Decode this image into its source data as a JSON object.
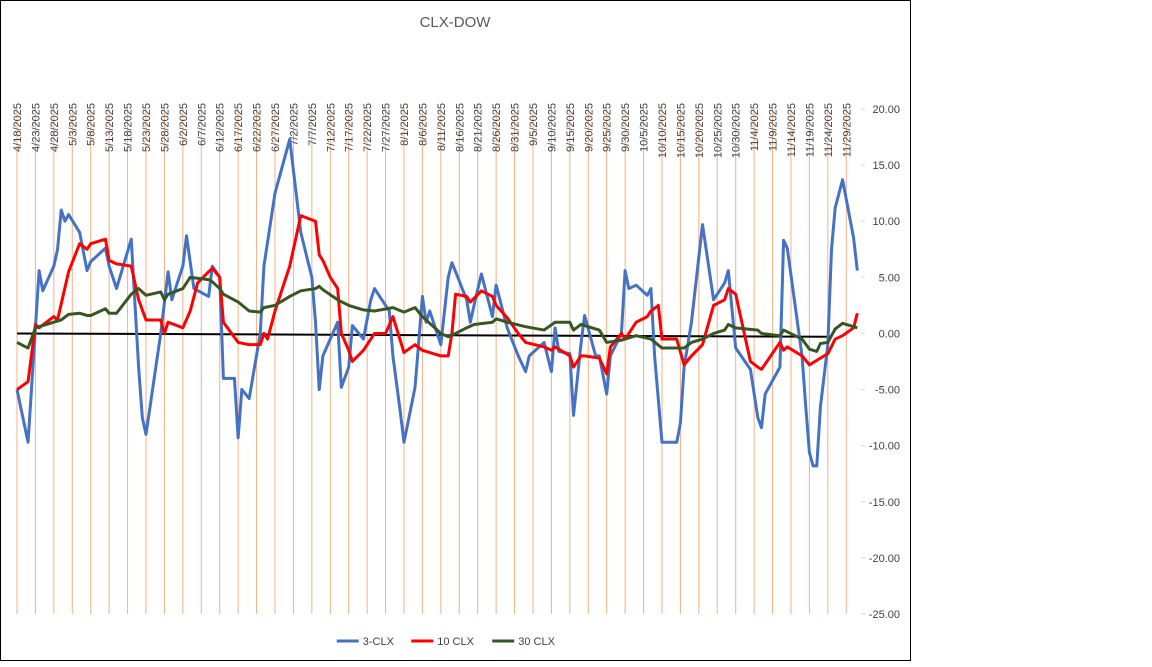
{
  "chart_data": {
    "type": "line",
    "title": "CLX-DOW",
    "xlim": [
      "4/18/2025",
      "12/3/2025"
    ],
    "xticks": [
      "4/18/2025",
      "4/23/2025",
      "4/28/2025",
      "5/3/2025",
      "5/8/2025",
      "5/13/2025",
      "5/18/2025",
      "5/23/2025",
      "5/28/2025",
      "6/2/2025",
      "6/7/2025",
      "6/12/2025",
      "6/17/2025",
      "6/22/2025",
      "6/27/2025",
      "7/2/2025",
      "7/7/2025",
      "7/12/2025",
      "7/17/2025",
      "7/22/2025",
      "7/27/2025",
      "8/1/2025",
      "8/6/2025",
      "8/11/2025",
      "8/16/2025",
      "8/21/2025",
      "8/26/2025",
      "8/31/2025",
      "9/5/2025",
      "9/10/2025",
      "9/15/2025",
      "9/20/2025",
      "9/25/2025",
      "9/30/2025",
      "10/5/2025",
      "10/10/2025",
      "10/15/2025",
      "10/20/2025",
      "10/25/2025",
      "10/30/2025",
      "11/4/2025",
      "11/9/2025",
      "11/14/2025",
      "11/19/2025",
      "11/24/2025",
      "11/29/2025"
    ],
    "ylim": [
      -25,
      20
    ],
    "yticks": [
      {
        "value": 20,
        "label": "20.00"
      },
      {
        "value": 15,
        "label": "15.00"
      },
      {
        "value": 10,
        "label": "10.00"
      },
      {
        "value": 5,
        "label": "5.00"
      },
      {
        "value": 0,
        "label": "0.00"
      },
      {
        "value": -5,
        "label": "-5.00"
      },
      {
        "value": -10,
        "label": "-10.00"
      },
      {
        "value": -15,
        "label": "-15.00"
      },
      {
        "value": -20,
        "label": "-20.00"
      },
      {
        "value": -25,
        "label": "-25.00"
      }
    ],
    "y_axis_side": "right",
    "x_grid": true,
    "grid_color": "#f4b183",
    "legend": "bottom",
    "reference_line": {
      "color": "#000000",
      "x": [
        "4/18/2025",
        "11/24/2025"
      ],
      "values": [
        0,
        -0.3
      ]
    },
    "series": [
      {
        "name": "3-CLX",
        "color": "#4472c4",
        "x": [
          "4/18/2025",
          "4/21/2025",
          "4/24/2025",
          "4/25/2025",
          "4/28/2025",
          "4/29/2025",
          "4/30/2025",
          "5/1/2025",
          "5/2/2025",
          "5/5/2025",
          "5/7/2025",
          "5/8/2025",
          "5/12/2025",
          "5/13/2025",
          "5/15/2025",
          "5/19/2025",
          "5/21/2025",
          "5/22/2025",
          "5/23/2025",
          "5/27/2025",
          "5/29/2025",
          "5/30/2025",
          "6/2/2025",
          "6/3/2025",
          "6/5/2025",
          "6/9/2025",
          "6/10/2025",
          "6/12/2025",
          "6/13/2025",
          "6/16/2025",
          "6/17/2025",
          "6/18/2025",
          "6/20/2025",
          "6/23/2025",
          "6/24/2025",
          "6/27/2025",
          "7/1/2025",
          "7/4/2025",
          "7/7/2025",
          "7/8/2025",
          "7/9/2025",
          "7/10/2025",
          "7/14/2025",
          "7/15/2025",
          "7/17/2025",
          "7/18/2025",
          "7/21/2025",
          "7/23/2025",
          "7/24/2025",
          "7/28/2025",
          "7/29/2025",
          "7/31/2025",
          "8/1/2025",
          "8/4/2025",
          "8/6/2025",
          "8/7/2025",
          "8/8/2025",
          "8/11/2025",
          "8/13/2025",
          "8/14/2025",
          "8/15/2025",
          "8/18/2025",
          "8/19/2025",
          "8/20/2025",
          "8/22/2025",
          "8/25/2025",
          "8/26/2025",
          "8/29/2025",
          "9/1/2025",
          "9/3/2025",
          "9/4/2025",
          "9/8/2025",
          "9/10/2025",
          "9/11/2025",
          "9/12/2025",
          "9/15/2025",
          "9/16/2025",
          "9/18/2025",
          "9/19/2025",
          "9/22/2025",
          "9/23/2025",
          "9/25/2025",
          "9/26/2025",
          "9/29/2025",
          "9/30/2025",
          "10/1/2025",
          "10/3/2025",
          "10/6/2025",
          "10/7/2025",
          "10/8/2025",
          "10/10/2025",
          "10/14/2025",
          "10/15/2025",
          "10/16/2025",
          "10/18/2025",
          "10/21/2025",
          "10/24/2025",
          "10/27/2025",
          "10/28/2025",
          "10/30/2025",
          "11/3/2025",
          "11/5/2025",
          "11/6/2025",
          "11/7/2025",
          "11/11/2025",
          "11/12/2025",
          "11/13/2025",
          "11/17/2025",
          "11/18/2025",
          "11/19/2025",
          "11/20/2025",
          "11/21/2025",
          "11/22/2025",
          "11/24/2025",
          "11/25/2025",
          "11/26/2025",
          "11/28/2025",
          "12/1/2025",
          "12/2/2025"
        ],
        "values": [
          -5,
          -9.7,
          5.6,
          3.8,
          6,
          7.5,
          11,
          10,
          10.6,
          9,
          5.6,
          6.4,
          7.6,
          6,
          4,
          8.4,
          -3,
          -7.5,
          -9,
          0,
          5.5,
          3,
          6,
          8.7,
          4,
          3.3,
          6,
          5,
          -4,
          -4,
          -9.3,
          -5,
          -5.8,
          0,
          6,
          12.5,
          17.3,
          9,
          5,
          1,
          -5,
          -2,
          1,
          -4.8,
          -3,
          0.7,
          -0.5,
          3,
          4,
          2,
          -2,
          -7,
          -9.7,
          -4.8,
          3.3,
          1,
          2,
          -1,
          5,
          6.3,
          5.5,
          3,
          1,
          2.5,
          5.3,
          1.5,
          4.3,
          0.5,
          -2,
          -3.4,
          -2,
          -0.8,
          -3.4,
          0.5,
          -1.6,
          -1.8,
          -7.3,
          -1,
          1.6,
          -2,
          -2,
          -5.4,
          -2,
          0,
          5.6,
          4,
          4.3,
          3.4,
          4,
          -2,
          -9.7,
          -9.7,
          -8,
          -3,
          1,
          9.7,
          3,
          4.5,
          5.6,
          -1.3,
          -3.2,
          -7.5,
          -8.4,
          -5.4,
          -3,
          8.3,
          7.6,
          -2,
          -6.5,
          -10.6,
          -11.8,
          -11.8,
          -6.5,
          -1,
          7.5,
          11.2,
          13.7,
          8.5,
          5.6
        ]
      },
      {
        "name": "10 CLX",
        "color": "#ff0000",
        "x": [
          "4/18/2025",
          "4/21/2025",
          "4/23/2025",
          "4/24/2025",
          "4/28/2025",
          "4/29/2025",
          "5/2/2025",
          "5/5/2025",
          "5/7/2025",
          "5/8/2025",
          "5/12/2025",
          "5/13/2025",
          "5/15/2025",
          "5/19/2025",
          "5/21/2025",
          "5/23/2025",
          "5/27/2025",
          "5/28/2025",
          "5/29/2025",
          "6/2/2025",
          "6/4/2025",
          "6/6/2025",
          "6/9/2025",
          "6/10/2025",
          "6/12/2025",
          "6/13/2025",
          "6/17/2025",
          "6/20/2025",
          "6/23/2025",
          "6/24/2025",
          "6/25/2025",
          "6/27/2025",
          "7/1/2025",
          "7/4/2025",
          "7/8/2025",
          "7/9/2025",
          "7/10/2025",
          "7/12/2025",
          "7/14/2025",
          "7/15/2025",
          "7/17/2025",
          "7/18/2025",
          "7/21/2025",
          "7/23/2025",
          "7/24/2025",
          "7/27/2025",
          "7/29/2025",
          "8/1/2025",
          "8/4/2025",
          "8/6/2025",
          "8/11/2025",
          "8/13/2025",
          "8/14/2025",
          "8/15/2025",
          "8/18/2025",
          "8/19/2025",
          "8/22/2025",
          "8/25/2025",
          "8/26/2025",
          "8/29/2025",
          "9/1/2025",
          "9/3/2025",
          "9/8/2025",
          "9/10/2025",
          "9/11/2025",
          "9/15/2025",
          "9/16/2025",
          "9/18/2025",
          "9/19/2025",
          "9/23/2025",
          "9/25/2025",
          "9/26/2025",
          "9/29/2025",
          "9/30/2025",
          "10/3/2025",
          "10/6/2025",
          "10/7/2025",
          "10/9/2025",
          "10/10/2025",
          "10/14/2025",
          "10/16/2025",
          "10/18/2025",
          "10/21/2025",
          "10/24/2025",
          "10/27/2025",
          "10/28/2025",
          "10/30/2025",
          "11/3/2025",
          "11/5/2025",
          "11/6/2025",
          "11/11/2025",
          "11/12/2025",
          "11/13/2025",
          "11/17/2025",
          "11/19/2025",
          "11/21/2025",
          "11/24/2025",
          "11/26/2025",
          "11/28/2025",
          "12/1/2025",
          "12/2/2025"
        ],
        "values": [
          -5,
          -4.3,
          0.8,
          0.5,
          1.5,
          1.2,
          5.5,
          8,
          7.5,
          8,
          8.4,
          6.5,
          6.2,
          6,
          3,
          1.2,
          1.2,
          0,
          1,
          0.5,
          2,
          4.5,
          5.5,
          5.8,
          5,
          1,
          -0.8,
          -1,
          -1,
          0,
          -0.5,
          2,
          6,
          10.5,
          10,
          7,
          6.5,
          5,
          4,
          0,
          -1.5,
          -2.5,
          -1.5,
          -0.5,
          0,
          0,
          1.5,
          -1.7,
          -1,
          -1.5,
          -2,
          -2,
          0,
          3.5,
          3.3,
          2.8,
          3.8,
          3.3,
          2.5,
          1.4,
          0,
          -0.8,
          -1.2,
          -1.5,
          -1.2,
          -2,
          -3,
          -2,
          -2,
          -2.2,
          -3.6,
          -1.2,
          0,
          -0.5,
          1,
          1.5,
          2,
          2.5,
          -0.5,
          -0.5,
          -2.8,
          -2,
          -1,
          2.5,
          3,
          4,
          3.5,
          -2.5,
          -3,
          -3.2,
          -0.8,
          -1.5,
          -1.2,
          -2,
          -2.8,
          -2.4,
          -1.8,
          -0.5,
          -0.2,
          0.5,
          1.8
        ]
      },
      {
        "name": "30 CLX",
        "color": "#375623",
        "x": [
          "4/18/2025",
          "4/21/2025",
          "4/23/2025",
          "4/28/2025",
          "4/30/2025",
          "5/2/2025",
          "5/5/2025",
          "5/7/2025",
          "5/8/2025",
          "5/12/2025",
          "5/13/2025",
          "5/15/2025",
          "5/19/2025",
          "5/21/2025",
          "5/23/2025",
          "5/27/2025",
          "5/28/2025",
          "5/29/2025",
          "6/2/2025",
          "6/4/2025",
          "6/9/2025",
          "6/10/2025",
          "6/12/2025",
          "6/13/2025",
          "6/17/2025",
          "6/20/2025",
          "6/23/2025",
          "6/24/2025",
          "6/27/2025",
          "7/1/2025",
          "7/4/2025",
          "7/8/2025",
          "7/9/2025",
          "7/10/2025",
          "7/14/2025",
          "7/17/2025",
          "7/21/2025",
          "7/24/2025",
          "7/29/2025",
          "8/1/2025",
          "8/4/2025",
          "8/6/2025",
          "8/11/2025",
          "8/13/2025",
          "8/15/2025",
          "8/18/2025",
          "8/20/2025",
          "8/25/2025",
          "8/26/2025",
          "8/29/2025",
          "9/3/2025",
          "9/8/2025",
          "9/11/2025",
          "9/15/2025",
          "9/16/2025",
          "9/18/2025",
          "9/23/2025",
          "9/25/2025",
          "9/29/2025",
          "10/3/2025",
          "10/7/2025",
          "10/10/2025",
          "10/16/2025",
          "10/18/2025",
          "10/21/2025",
          "10/24/2025",
          "10/27/2025",
          "10/28/2025",
          "10/30/2025",
          "11/5/2025",
          "11/6/2025",
          "11/11/2025",
          "11/12/2025",
          "11/17/2025",
          "11/19/2025",
          "11/21/2025",
          "11/22/2025",
          "11/24/2025",
          "11/26/2025",
          "11/28/2025",
          "12/2/2025"
        ],
        "values": [
          -0.8,
          -1.3,
          0.5,
          1,
          1.2,
          1.7,
          1.8,
          1.6,
          1.6,
          2.2,
          1.8,
          1.8,
          3.5,
          4,
          3.4,
          3.7,
          3,
          3.5,
          4,
          5,
          4.8,
          4.6,
          4,
          3.5,
          2.8,
          2,
          1.9,
          2.3,
          2.5,
          3.3,
          3.8,
          4,
          4.2,
          3.9,
          3,
          2.5,
          2.1,
          2,
          2.3,
          1.9,
          2.3,
          1.5,
          0,
          -0.3,
          0,
          0.5,
          0.8,
          1,
          1.3,
          1,
          0.6,
          0.3,
          1,
          1,
          0.3,
          0.8,
          0.3,
          -0.8,
          -0.6,
          -0.2,
          -0.5,
          -1.3,
          -1.3,
          -0.8,
          -0.5,
          0,
          0.3,
          0.8,
          0.5,
          0.3,
          0,
          -0.2,
          0.3,
          -0.5,
          -1.4,
          -1.6,
          -0.9,
          -0.8,
          0.4,
          0.9,
          0.5
        ]
      }
    ]
  }
}
